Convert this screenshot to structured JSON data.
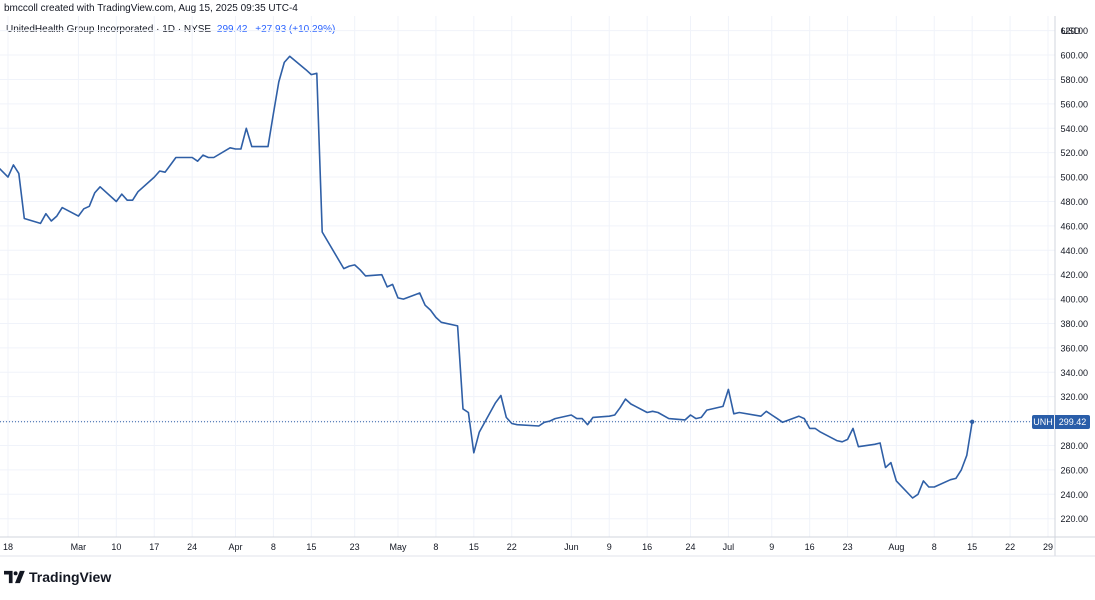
{
  "header": {
    "attribution": "bmccoll created with TradingView.com, Aug 15, 2025 09:35 UTC-4",
    "symbol_line": "UnitedHealth Group Incorporated · 1D · NYSE",
    "last_price": "299.42",
    "change": "+27.93 (+10.29%)"
  },
  "price_tag": {
    "symbol": "UNH",
    "value": "299.42"
  },
  "brand": {
    "name": "TradingView",
    "icon": "tradingview-logo-icon"
  },
  "colors": {
    "line": "#2f5fa6",
    "tag": "#2a5ea9",
    "accent": "#2962ff",
    "grid": "#f0f3fa"
  },
  "chart_data": {
    "type": "line",
    "title": "UnitedHealth Group Incorporated · 1D · NYSE",
    "currency": "USD",
    "ylim": [
      205,
      632
    ],
    "y_ticks": [
      "220.00",
      "240.00",
      "260.00",
      "280.00",
      "300.00",
      "320.00",
      "340.00",
      "360.00",
      "380.00",
      "400.00",
      "420.00",
      "440.00",
      "460.00",
      "480.00",
      "500.00",
      "520.00",
      "540.00",
      "560.00",
      "580.00",
      "600.00",
      "620.00"
    ],
    "x_ticks": [
      {
        "label": "18",
        "date": "2025-02-18"
      },
      {
        "label": "Mar",
        "date": "2025-03-03"
      },
      {
        "label": "10",
        "date": "2025-03-10"
      },
      {
        "label": "17",
        "date": "2025-03-17"
      },
      {
        "label": "24",
        "date": "2025-03-24"
      },
      {
        "label": "Apr",
        "date": "2025-04-01"
      },
      {
        "label": "8",
        "date": "2025-04-08"
      },
      {
        "label": "15",
        "date": "2025-04-15"
      },
      {
        "label": "23",
        "date": "2025-04-23"
      },
      {
        "label": "May",
        "date": "2025-05-01"
      },
      {
        "label": "8",
        "date": "2025-05-08"
      },
      {
        "label": "15",
        "date": "2025-05-15"
      },
      {
        "label": "22",
        "date": "2025-05-22"
      },
      {
        "label": "Jun",
        "date": "2025-06-02"
      },
      {
        "label": "9",
        "date": "2025-06-09"
      },
      {
        "label": "16",
        "date": "2025-06-16"
      },
      {
        "label": "24",
        "date": "2025-06-24"
      },
      {
        "label": "Jul",
        "date": "2025-07-01"
      },
      {
        "label": "9",
        "date": "2025-07-09"
      },
      {
        "label": "16",
        "date": "2025-07-16"
      },
      {
        "label": "23",
        "date": "2025-07-23"
      },
      {
        "label": "Aug",
        "date": "2025-08-01"
      },
      {
        "label": "8",
        "date": "2025-08-08"
      },
      {
        "label": "15",
        "date": "2025-08-15"
      },
      {
        "label": "22",
        "date": "2025-08-22"
      },
      {
        "label": "29",
        "date": "2025-08-29"
      }
    ],
    "series": [
      {
        "symbol": "UNH",
        "points": [
          [
            "2025-02-14",
            518
          ],
          [
            "2025-02-18",
            500
          ],
          [
            "2025-02-19",
            510
          ],
          [
            "2025-02-20",
            503
          ],
          [
            "2025-02-21",
            466
          ],
          [
            "2025-02-24",
            462
          ],
          [
            "2025-02-25",
            470
          ],
          [
            "2025-02-26",
            464
          ],
          [
            "2025-02-27",
            468
          ],
          [
            "2025-02-28",
            475
          ],
          [
            "2025-03-03",
            468
          ],
          [
            "2025-03-04",
            474
          ],
          [
            "2025-03-05",
            476
          ],
          [
            "2025-03-06",
            487
          ],
          [
            "2025-03-07",
            492
          ],
          [
            "2025-03-10",
            480
          ],
          [
            "2025-03-11",
            486
          ],
          [
            "2025-03-12",
            481
          ],
          [
            "2025-03-13",
            481
          ],
          [
            "2025-03-14",
            488
          ],
          [
            "2025-03-17",
            500
          ],
          [
            "2025-03-18",
            505
          ],
          [
            "2025-03-19",
            504
          ],
          [
            "2025-03-20",
            510
          ],
          [
            "2025-03-21",
            516
          ],
          [
            "2025-03-24",
            516
          ],
          [
            "2025-03-25",
            513
          ],
          [
            "2025-03-26",
            518
          ],
          [
            "2025-03-27",
            516
          ],
          [
            "2025-03-28",
            516
          ],
          [
            "2025-03-31",
            524
          ],
          [
            "2025-04-01",
            523
          ],
          [
            "2025-04-02",
            523
          ],
          [
            "2025-04-03",
            540
          ],
          [
            "2025-04-04",
            525
          ],
          [
            "2025-04-07",
            525
          ],
          [
            "2025-04-08",
            552
          ],
          [
            "2025-04-09",
            578
          ],
          [
            "2025-04-10",
            594
          ],
          [
            "2025-04-11",
            599
          ],
          [
            "2025-04-14",
            588
          ],
          [
            "2025-04-15",
            584
          ],
          [
            "2025-04-16",
            585
          ],
          [
            "2025-04-17",
            455
          ],
          [
            "2025-04-21",
            425
          ],
          [
            "2025-04-22",
            427
          ],
          [
            "2025-04-23",
            428
          ],
          [
            "2025-04-24",
            424
          ],
          [
            "2025-04-25",
            419
          ],
          [
            "2025-04-28",
            420
          ],
          [
            "2025-04-29",
            410
          ],
          [
            "2025-04-30",
            412
          ],
          [
            "2025-05-01",
            401
          ],
          [
            "2025-05-02",
            400
          ],
          [
            "2025-05-05",
            405
          ],
          [
            "2025-05-06",
            395
          ],
          [
            "2025-05-07",
            391
          ],
          [
            "2025-05-08",
            385
          ],
          [
            "2025-05-09",
            381
          ],
          [
            "2025-05-12",
            378
          ],
          [
            "2025-05-13",
            310
          ],
          [
            "2025-05-14",
            307
          ],
          [
            "2025-05-15",
            274
          ],
          [
            "2025-05-16",
            291
          ],
          [
            "2025-05-19",
            315
          ],
          [
            "2025-05-20",
            321
          ],
          [
            "2025-05-21",
            303
          ],
          [
            "2025-05-22",
            298
          ],
          [
            "2025-05-23",
            297
          ],
          [
            "2025-05-27",
            296
          ],
          [
            "2025-05-28",
            299
          ],
          [
            "2025-05-29",
            300
          ],
          [
            "2025-05-30",
            302
          ],
          [
            "2025-06-02",
            305
          ],
          [
            "2025-06-03",
            302
          ],
          [
            "2025-06-04",
            302
          ],
          [
            "2025-06-05",
            297
          ],
          [
            "2025-06-06",
            303
          ],
          [
            "2025-06-09",
            304
          ],
          [
            "2025-06-10",
            305
          ],
          [
            "2025-06-11",
            311
          ],
          [
            "2025-06-12",
            318
          ],
          [
            "2025-06-13",
            314
          ],
          [
            "2025-06-16",
            307
          ],
          [
            "2025-06-17",
            308
          ],
          [
            "2025-06-18",
            307
          ],
          [
            "2025-06-20",
            302
          ],
          [
            "2025-06-23",
            301
          ],
          [
            "2025-06-24",
            305
          ],
          [
            "2025-06-25",
            302
          ],
          [
            "2025-06-26",
            303
          ],
          [
            "2025-06-27",
            309
          ],
          [
            "2025-06-30",
            312
          ],
          [
            "2025-07-01",
            326
          ],
          [
            "2025-07-02",
            306
          ],
          [
            "2025-07-03",
            307
          ],
          [
            "2025-07-07",
            304
          ],
          [
            "2025-07-08",
            308
          ],
          [
            "2025-07-09",
            305
          ],
          [
            "2025-07-10",
            302
          ],
          [
            "2025-07-11",
            299
          ],
          [
            "2025-07-14",
            304
          ],
          [
            "2025-07-15",
            302
          ],
          [
            "2025-07-16",
            294
          ],
          [
            "2025-07-17",
            294
          ],
          [
            "2025-07-18",
            291
          ],
          [
            "2025-07-21",
            284
          ],
          [
            "2025-07-22",
            283
          ],
          [
            "2025-07-23",
            285
          ],
          [
            "2025-07-24",
            294
          ],
          [
            "2025-07-25",
            279
          ],
          [
            "2025-07-28",
            281
          ],
          [
            "2025-07-29",
            282
          ],
          [
            "2025-07-30",
            262
          ],
          [
            "2025-07-31",
            266
          ],
          [
            "2025-08-01",
            251
          ],
          [
            "2025-08-04",
            237
          ],
          [
            "2025-08-05",
            240
          ],
          [
            "2025-08-06",
            251
          ],
          [
            "2025-08-07",
            246
          ],
          [
            "2025-08-08",
            246
          ],
          [
            "2025-08-11",
            252
          ],
          [
            "2025-08-12",
            253
          ],
          [
            "2025-08-13",
            260
          ],
          [
            "2025-08-14",
            272
          ],
          [
            "2025-08-15",
            299.42
          ]
        ]
      }
    ],
    "grid": true,
    "price_line": 299.42
  }
}
